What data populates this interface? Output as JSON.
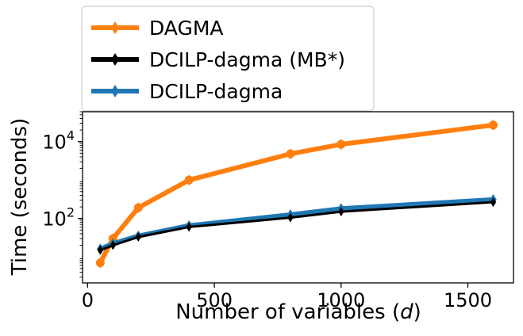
{
  "chart_data": {
    "type": "line",
    "title": "",
    "xlabel_prefix": "Number of variables (",
    "xlabel_var": "d",
    "xlabel_suffix": ")",
    "ylabel": "Time (seconds)",
    "xlim": [
      -20,
      1680
    ],
    "ylim": [
      2.1,
      60000
    ],
    "yscale": "log",
    "grid": false,
    "legend_position": "top-left (above plot)",
    "x_ticks": [
      0,
      500,
      1000,
      1500
    ],
    "x_tick_labels": [
      "0",
      "500",
      "1000",
      "1500"
    ],
    "y_ticks": [
      100,
      10000
    ],
    "y_tick_labels": [
      {
        "base": "10",
        "exp": "2"
      },
      {
        "base": "10",
        "exp": "4"
      }
    ],
    "series": [
      {
        "name": "DAGMA",
        "color": "#ff7f0e",
        "x": [
          50,
          100,
          200,
          400,
          800,
          1000,
          1600
        ],
        "y": [
          7,
          30,
          190,
          1000,
          4800,
          8500,
          27000
        ]
      },
      {
        "name": "DCILP-dagma (MB*)",
        "color": "#000000",
        "x": [
          50,
          100,
          200,
          400,
          800,
          1000,
          1600
        ],
        "y": [
          15,
          20,
          33,
          60,
          105,
          150,
          265
        ]
      },
      {
        "name": "DCILP-dagma",
        "color": "#1f77b4",
        "x": [
          50,
          100,
          200,
          400,
          800,
          1000,
          1600
        ],
        "y": [
          16,
          22,
          35,
          65,
          125,
          180,
          310
        ]
      }
    ]
  }
}
